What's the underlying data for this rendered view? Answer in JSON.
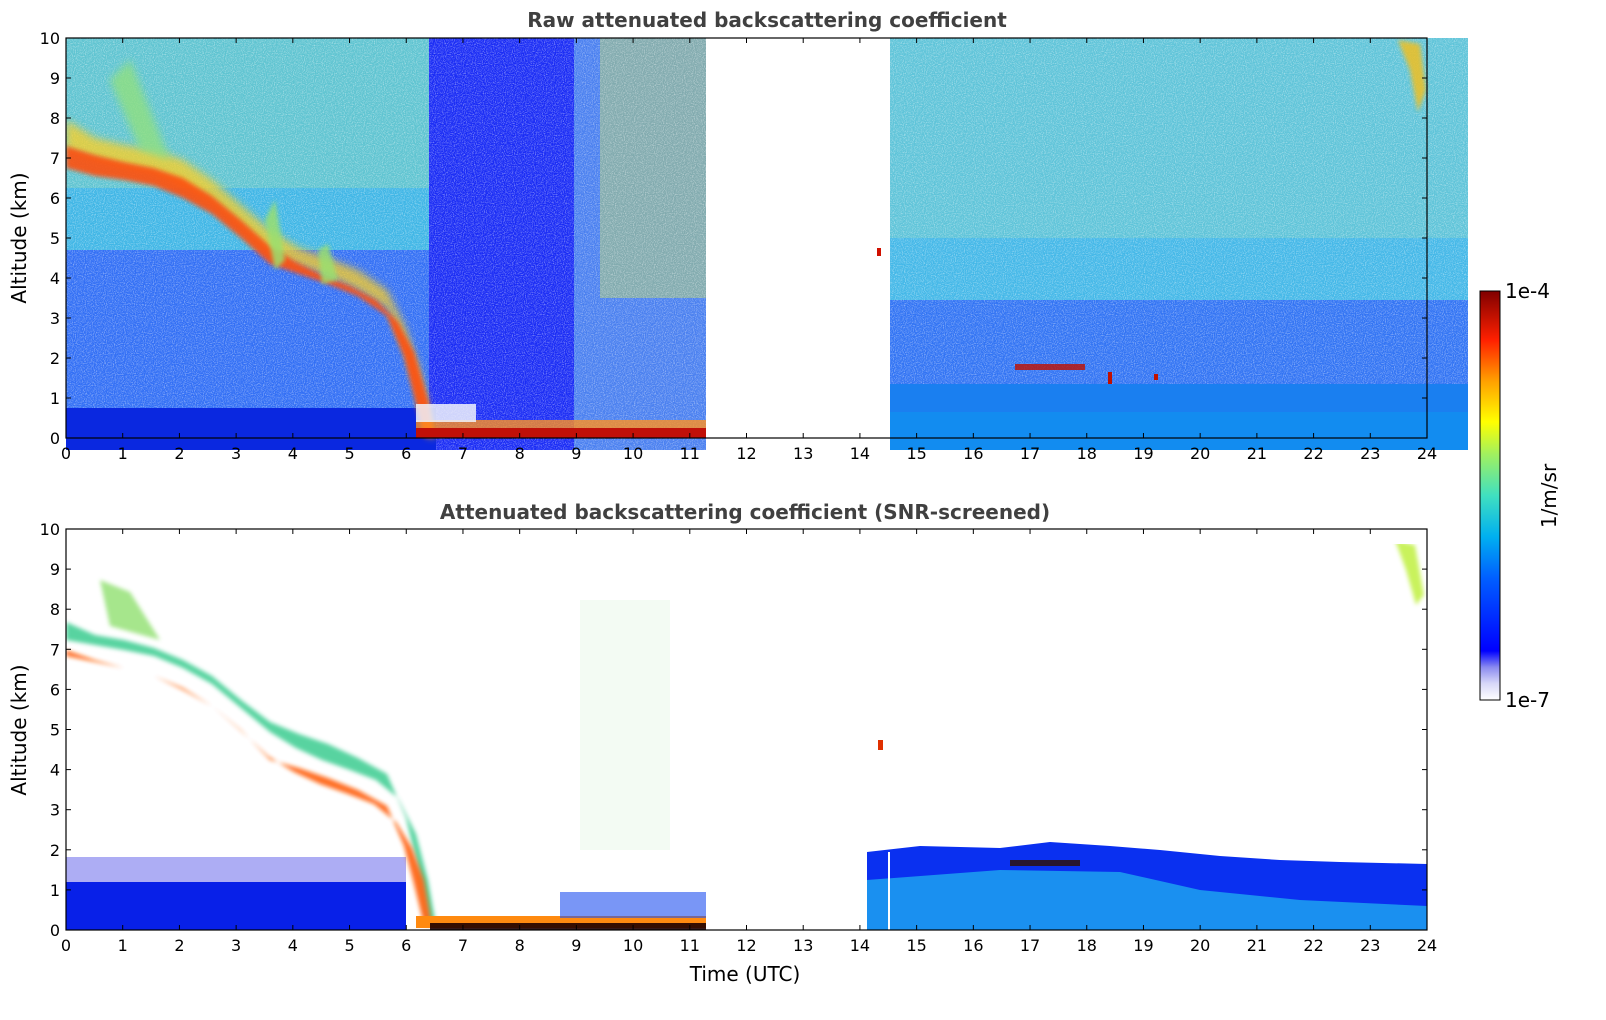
{
  "chart_data": [
    {
      "type": "heatmap",
      "title": "Raw attenuated backscattering coefficient",
      "xlabel": "",
      "ylabel": "Altitude (km)",
      "xlim": [
        0,
        24
      ],
      "ylim": [
        0,
        10
      ],
      "xticks": [
        "0",
        "1",
        "2",
        "3",
        "4",
        "5",
        "6",
        "7",
        "8",
        "9",
        "10",
        "11",
        "12",
        "13",
        "14",
        "15",
        "16",
        "17",
        "18",
        "19",
        "20",
        "21",
        "22",
        "23",
        "24"
      ],
      "yticks": [
        "0",
        "1",
        "2",
        "3",
        "4",
        "5",
        "6",
        "7",
        "8",
        "9",
        "10"
      ],
      "data_gap_hours": [
        11.3,
        14.1
      ],
      "features": {
        "descending_layer": {
          "points": [
            [
              0,
              6.4
            ],
            [
              0.5,
              5.9
            ],
            [
              1,
              5.6
            ],
            [
              1.5,
              5.5
            ],
            [
              2,
              5.1
            ],
            [
              2.5,
              4.7
            ],
            [
              3,
              4.2
            ],
            [
              3.5,
              3.4
            ],
            [
              4,
              3.1
            ],
            [
              4.5,
              2.9
            ],
            [
              5,
              2.6
            ],
            [
              5.5,
              2.2
            ],
            [
              5.8,
              1.6
            ],
            [
              6.0,
              0.9
            ],
            [
              6.2,
              0.3
            ]
          ],
          "thickness_km": [
            1.1,
            0.8
          ],
          "peak": "1e-5"
        },
        "surface_layer_top_km": 0.8,
        "afternoon_boundary_layer_top_km": 1.5
      }
    },
    {
      "type": "heatmap",
      "title": "Attenuated backscattering coefficient (SNR-screened)",
      "xlabel": "Time (UTC)",
      "ylabel": "Altitude (km)",
      "xlim": [
        0,
        24
      ],
      "ylim": [
        0,
        10
      ],
      "xticks": [
        "0",
        "1",
        "2",
        "3",
        "4",
        "5",
        "6",
        "7",
        "8",
        "9",
        "10",
        "11",
        "12",
        "13",
        "14",
        "15",
        "16",
        "17",
        "18",
        "19",
        "20",
        "21",
        "22",
        "23",
        "24"
      ],
      "yticks": [
        "0",
        "1",
        "2",
        "3",
        "4",
        "5",
        "6",
        "7",
        "8",
        "9",
        "10"
      ],
      "data_gap_hours": [
        11.3,
        14.1
      ],
      "features": {
        "morning_aerosol_top_km": 1.8,
        "afternoon_boundary_layer_top_km": 2.0
      }
    }
  ],
  "colorbar": {
    "label": "1/m/sr",
    "max_label": "1e-4",
    "min_label": "1e-7",
    "scale": "log",
    "colormap": "jet"
  }
}
